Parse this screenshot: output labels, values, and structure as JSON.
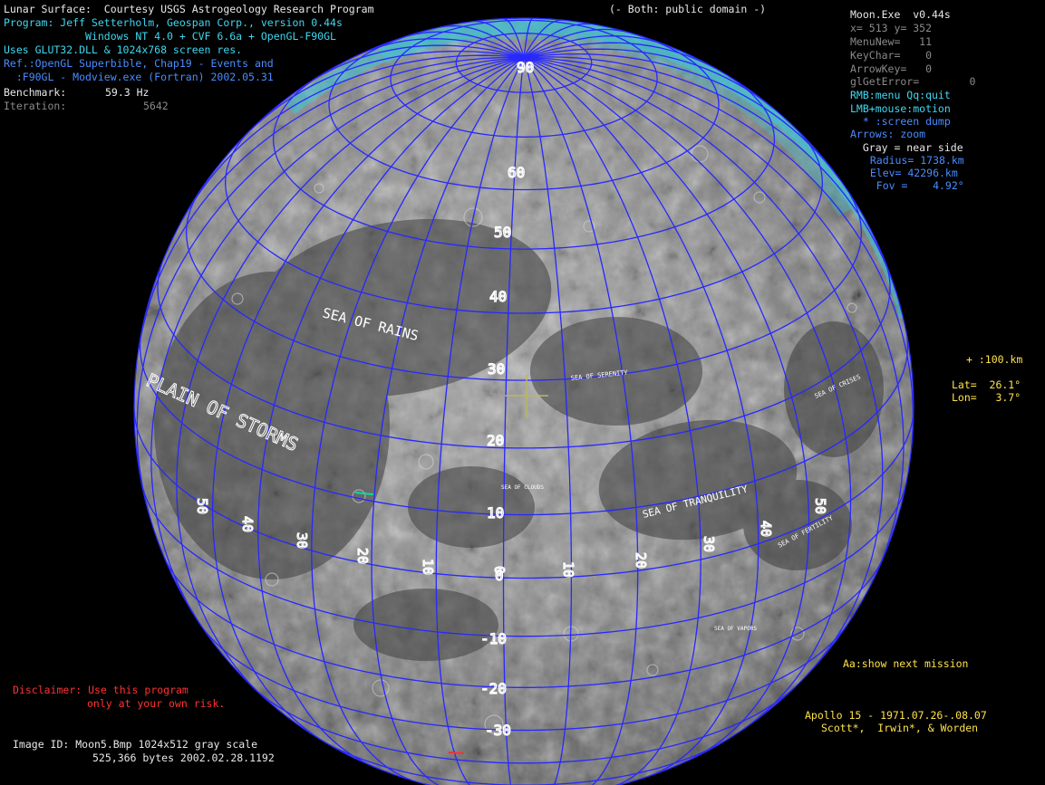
{
  "header": {
    "credit_line": "Lunar Surface:  Courtesy USGS Astrogeology Research Program",
    "both_public": "(- Both: public domain -)",
    "program_line": "Program: Jeff Setterholm, Geospan Corp., version 0.44s",
    "platform_line": "Windows NT 4.0 + CVF 6.6a + OpenGL-F90GL",
    "glut_line": "Uses GLUT32.DLL & 1024x768 screen res.",
    "ref_line": "Ref.:OpenGL Superbible, Chap19 - Events and",
    "f90gl_line": "  :F90GL - Modview.exe (Fortran) 2002.05.31",
    "benchmark_label": "Benchmark:",
    "benchmark_value": "59.3 Hz",
    "iteration_label": "Iteration:",
    "iteration_value": "5642"
  },
  "status": {
    "title": "Moon.Exe  v0.44s",
    "xy": "x= 513 y= 352",
    "menunew": "MenuNew=   11",
    "keychar": "KeyChar=    0",
    "arrowkey": "ArrowKey=   0",
    "glerror": "glGetError=        0",
    "rmb": "RMB:menu Qq:quit",
    "lmb": "LMB+mouse:motion",
    "screen_dump": "  * :screen dump",
    "arrows_zoom": "Arrows: zoom",
    "gray_near": "  Gray = near side",
    "radius": "  Radius= 1738.km",
    "elev": "  Elev= 42296.km",
    "fov": "   Fov =    4.92°"
  },
  "readout": {
    "scale": "+ :100.km",
    "lat": "Lat=  26.1°",
    "lon": "Lon=   3.7°"
  },
  "hints": {
    "next_mission": "Aa:show next mission"
  },
  "mission": {
    "line1": "Apollo 15 - 1971.07.26-.08.07",
    "line2": "Scott*,  Irwin*, & Worden"
  },
  "disclaimer": {
    "line1": "Disclaimer: Use this program",
    "line2": "only at your own risk."
  },
  "image_info": {
    "line1": "Image ID: Moon5.Bmp 1024x512 gray scale",
    "line2": "525,366 bytes 2002.02.28.1192"
  },
  "moon": {
    "lat_labels": [
      "90",
      "60",
      "50",
      "40",
      "30",
      "20",
      "10",
      "0",
      "-10",
      "-20",
      "-30"
    ],
    "lon_labels": [
      "50",
      "40",
      "30",
      "20",
      "10",
      "0",
      "10",
      "20",
      "30",
      "40",
      "50"
    ],
    "maria": [
      "SEA OF RAINS",
      "PLAIN OF STORMS",
      "SEA OF SERENITY",
      "SEA OF TRANQUILITY",
      "SEA OF CLOUDS",
      "SEA OF VAPORS",
      "SEA OF CRISES",
      "SEA OF FERTILITY"
    ],
    "colors": {
      "grid": "#2828ff",
      "limb_fringe": "#38c8d8",
      "cursor": "#b8b860"
    }
  }
}
